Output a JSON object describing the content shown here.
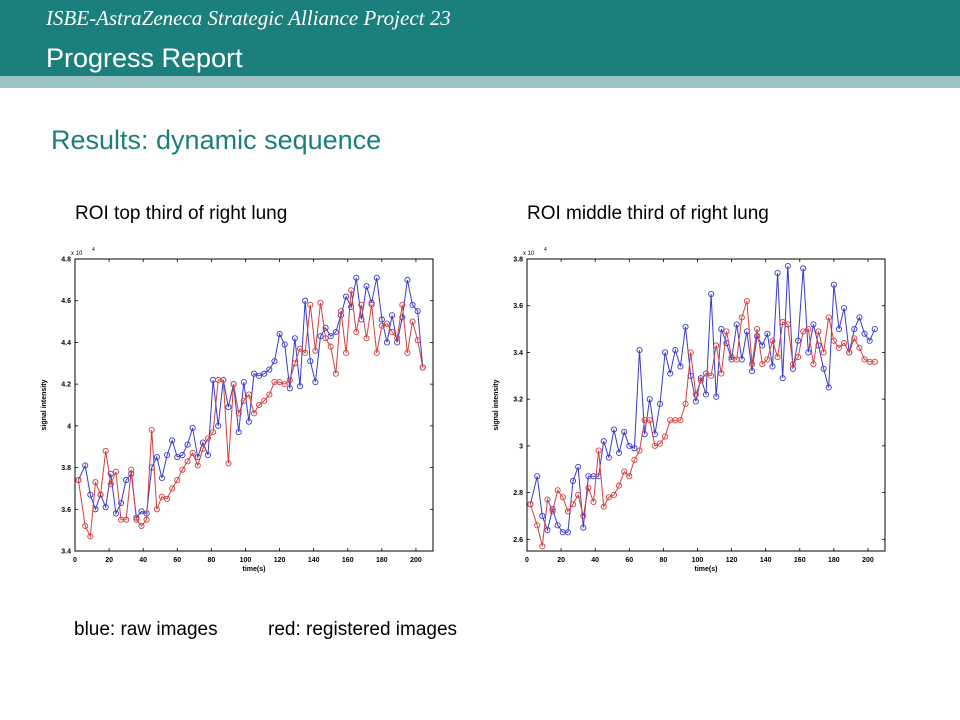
{
  "header": {
    "subtitle": "ISBE-AstraZeneca Strategic Alliance Project 23",
    "title": "Progress Report",
    "colors": {
      "bar": "#1b7f7c",
      "stripe": "#9cc3c3"
    }
  },
  "section_title": "Results: dynamic sequence",
  "captions": {
    "left": "ROI top third of right lung",
    "right": "ROI middle third of right lung"
  },
  "legend": {
    "raw": "blue: raw images",
    "registered": "red: registered images"
  },
  "chart_data": [
    {
      "type": "line",
      "xlabel": "time(s)",
      "ylabel": "signal intensity",
      "exponent_label": "x 10",
      "exponent_power": "4",
      "xlim": [
        0,
        210
      ],
      "ylim": [
        3.4,
        4.8
      ],
      "xticks": [
        0,
        20,
        40,
        60,
        80,
        100,
        120,
        140,
        160,
        180,
        200
      ],
      "yticks": [
        3.4,
        3.6,
        3.8,
        4.0,
        4.2,
        4.4,
        4.6,
        4.8
      ],
      "ytick_labels": [
        "3.4",
        "3.6",
        "3.8",
        "4",
        "4.2",
        "4.4",
        "4.6",
        "4.8"
      ],
      "series": [
        {
          "color": "#3a3acc",
          "x": [
            2,
            6,
            9,
            12,
            15,
            18,
            21,
            24,
            27,
            30,
            33,
            36,
            39,
            42,
            45,
            48,
            51,
            54,
            57,
            60,
            63,
            66,
            69,
            72,
            75,
            78,
            81,
            84,
            87,
            90,
            93,
            96,
            99,
            102,
            105,
            108,
            111,
            114,
            117,
            120,
            123,
            126,
            129,
            132,
            135,
            138,
            141,
            144,
            147,
            150,
            153,
            156,
            159,
            162,
            165,
            168,
            171,
            174,
            177,
            180,
            183,
            186,
            189,
            192,
            195,
            198,
            201,
            204
          ],
          "y": [
            3.74,
            3.81,
            3.67,
            3.6,
            3.67,
            3.61,
            3.77,
            3.58,
            3.63,
            3.74,
            3.77,
            3.56,
            3.59,
            3.58,
            3.8,
            3.85,
            3.75,
            3.86,
            3.93,
            3.85,
            3.86,
            3.91,
            3.99,
            3.85,
            3.92,
            3.86,
            4.22,
            4.0,
            4.22,
            4.09,
            4.2,
            3.97,
            4.21,
            4.02,
            4.25,
            4.24,
            4.25,
            4.27,
            4.31,
            4.44,
            4.39,
            4.18,
            4.42,
            4.19,
            4.6,
            4.31,
            4.21,
            4.43,
            4.47,
            4.43,
            4.45,
            4.53,
            4.62,
            4.57,
            4.71,
            4.51,
            4.67,
            4.59,
            4.71,
            4.51,
            4.4,
            4.53,
            4.4,
            4.52,
            4.7,
            4.58,
            4.55,
            4.28
          ]
        },
        {
          "color": "#d23f3f",
          "x": [
            2,
            6,
            9,
            12,
            15,
            18,
            21,
            24,
            27,
            30,
            33,
            36,
            39,
            42,
            45,
            48,
            51,
            54,
            57,
            60,
            63,
            66,
            69,
            72,
            75,
            78,
            81,
            84,
            87,
            90,
            93,
            96,
            99,
            102,
            105,
            108,
            111,
            114,
            117,
            120,
            123,
            126,
            129,
            132,
            135,
            138,
            141,
            144,
            147,
            150,
            153,
            156,
            159,
            162,
            165,
            168,
            171,
            174,
            177,
            180,
            183,
            186,
            189,
            192,
            195,
            198,
            201,
            204
          ],
          "y": [
            3.74,
            3.52,
            3.47,
            3.73,
            3.67,
            3.88,
            3.72,
            3.78,
            3.55,
            3.55,
            3.79,
            3.55,
            3.52,
            3.55,
            3.98,
            3.6,
            3.66,
            3.65,
            3.7,
            3.74,
            3.79,
            3.83,
            3.87,
            3.81,
            3.89,
            3.94,
            3.97,
            4.22,
            4.22,
            3.82,
            4.2,
            4.06,
            4.12,
            4.15,
            4.06,
            4.1,
            4.12,
            4.15,
            4.21,
            4.21,
            4.2,
            4.22,
            4.3,
            4.37,
            4.35,
            4.58,
            4.36,
            4.59,
            4.42,
            4.38,
            4.25,
            4.55,
            4.35,
            4.65,
            4.45,
            4.58,
            4.42,
            4.58,
            4.35,
            4.48,
            4.49,
            4.45,
            4.42,
            4.58,
            4.35,
            4.5,
            4.41,
            4.28
          ]
        }
      ]
    },
    {
      "type": "line",
      "xlabel": "time(s)",
      "ylabel": "signal intensity",
      "exponent_label": "x 10",
      "exponent_power": "4",
      "xlim": [
        0,
        210
      ],
      "ylim": [
        2.55,
        3.8
      ],
      "xticks": [
        0,
        20,
        40,
        60,
        80,
        100,
        120,
        140,
        160,
        180,
        200
      ],
      "yticks": [
        2.6,
        2.8,
        3.0,
        3.2,
        3.4,
        3.6,
        3.8
      ],
      "ytick_labels": [
        "2.6",
        "2.8",
        "3",
        "3.2",
        "3.4",
        "3.6",
        "3.8"
      ],
      "series": [
        {
          "color": "#3a3acc",
          "x": [
            2,
            6,
            9,
            12,
            15,
            18,
            21,
            24,
            27,
            30,
            33,
            36,
            39,
            42,
            45,
            48,
            51,
            54,
            57,
            60,
            63,
            66,
            69,
            72,
            75,
            78,
            81,
            84,
            87,
            90,
            93,
            96,
            99,
            102,
            105,
            108,
            111,
            114,
            117,
            120,
            123,
            126,
            129,
            132,
            135,
            138,
            141,
            144,
            147,
            150,
            153,
            156,
            159,
            162,
            165,
            168,
            171,
            174,
            177,
            180,
            183,
            186,
            189,
            192,
            195,
            198,
            201,
            204
          ],
          "y": [
            2.75,
            2.87,
            2.7,
            2.64,
            2.73,
            2.66,
            2.63,
            2.63,
            2.85,
            2.91,
            2.65,
            2.87,
            2.87,
            2.87,
            3.02,
            2.95,
            3.07,
            2.97,
            3.06,
            3.0,
            2.99,
            3.41,
            3.05,
            3.2,
            3.05,
            3.18,
            3.4,
            3.31,
            3.41,
            3.34,
            3.51,
            3.3,
            3.19,
            3.29,
            3.22,
            3.65,
            3.21,
            3.5,
            3.44,
            3.37,
            3.52,
            3.37,
            3.49,
            3.32,
            3.47,
            3.43,
            3.48,
            3.34,
            3.74,
            3.29,
            3.77,
            3.33,
            3.45,
            3.76,
            3.4,
            3.52,
            3.43,
            3.33,
            3.25,
            3.69,
            3.5,
            3.59,
            3.4,
            3.5,
            3.55,
            3.48,
            3.45,
            3.5
          ]
        },
        {
          "color": "#d23f3f",
          "x": [
            2,
            6,
            9,
            12,
            15,
            18,
            21,
            24,
            27,
            30,
            33,
            36,
            39,
            42,
            45,
            48,
            51,
            54,
            57,
            60,
            63,
            66,
            69,
            72,
            75,
            78,
            81,
            84,
            87,
            90,
            93,
            96,
            99,
            102,
            105,
            108,
            111,
            114,
            117,
            120,
            123,
            126,
            129,
            132,
            135,
            138,
            141,
            144,
            147,
            150,
            153,
            156,
            159,
            162,
            165,
            168,
            171,
            174,
            177,
            180,
            183,
            186,
            189,
            192,
            195,
            198,
            201,
            204
          ],
          "y": [
            2.75,
            2.66,
            2.57,
            2.77,
            2.72,
            2.81,
            2.78,
            2.72,
            2.75,
            2.79,
            2.7,
            2.82,
            2.76,
            2.98,
            2.74,
            2.78,
            2.79,
            2.83,
            2.89,
            2.87,
            2.94,
            2.98,
            3.11,
            3.11,
            3.0,
            3.01,
            3.04,
            3.11,
            3.11,
            3.11,
            3.18,
            3.4,
            3.22,
            3.28,
            3.31,
            3.3,
            3.43,
            3.31,
            3.49,
            3.38,
            3.37,
            3.55,
            3.62,
            3.35,
            3.5,
            3.35,
            3.37,
            3.45,
            3.38,
            3.53,
            3.52,
            3.35,
            3.38,
            3.49,
            3.5,
            3.35,
            3.49,
            3.4,
            3.55,
            3.45,
            3.42,
            3.44,
            3.4,
            3.46,
            3.42,
            3.37,
            3.36,
            3.36
          ]
        }
      ]
    }
  ]
}
